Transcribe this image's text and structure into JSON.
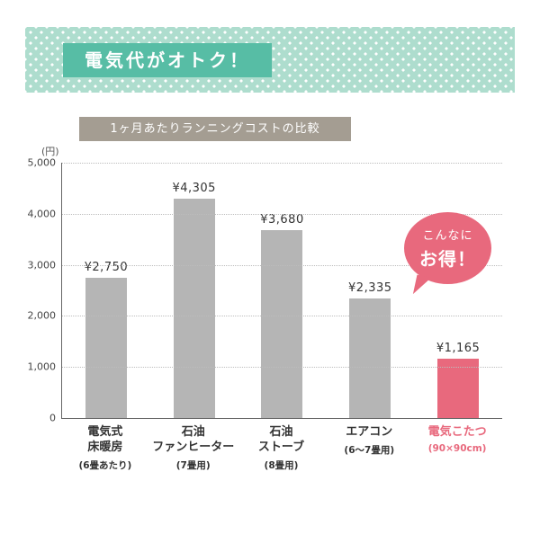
{
  "header": {
    "title": "電気代がオトク！"
  },
  "bubble": {
    "line1": "こんなに",
    "line2": "お得！"
  },
  "colors": {
    "banner_bg": "#aeddce",
    "banner_title_bg": "#57bda5",
    "chart_title_bg": "#a49d92",
    "bar_gray": "#b5b5b5",
    "accent_pink": "#e8697d"
  },
  "chart_data": {
    "type": "bar",
    "title": "1ヶ月あたりランニングコストの比較",
    "ylabel": "(円)",
    "ylim": [
      0,
      5000
    ],
    "ytick_interval": 1000,
    "yticks": [
      "0",
      "1,000",
      "2,000",
      "3,000",
      "4,000",
      "5,000"
    ],
    "categories": [
      {
        "label": "電気式床暖房",
        "lines": [
          "電気式",
          "床暖房"
        ],
        "sub": "(6畳あたり)",
        "highlight": false
      },
      {
        "label": "石油ファンヒーター",
        "lines": [
          "石油",
          "ファンヒーター"
        ],
        "sub": "(7畳用)",
        "highlight": false
      },
      {
        "label": "石油ストーブ",
        "lines": [
          "石油",
          "ストーブ"
        ],
        "sub": "(8畳用)",
        "highlight": false
      },
      {
        "label": "エアコン",
        "lines": [
          "エアコン"
        ],
        "sub": "(6〜7畳用)",
        "highlight": false
      },
      {
        "label": "電気こたつ",
        "lines": [
          "電気こたつ"
        ],
        "sub": "(90×90cm)",
        "highlight": true
      }
    ],
    "values": [
      2750,
      4305,
      3680,
      2335,
      1165
    ],
    "value_labels": [
      "¥2,750",
      "¥4,305",
      "¥3,680",
      "¥2,335",
      "¥1,165"
    ],
    "grid": true,
    "legend_position": "none"
  }
}
